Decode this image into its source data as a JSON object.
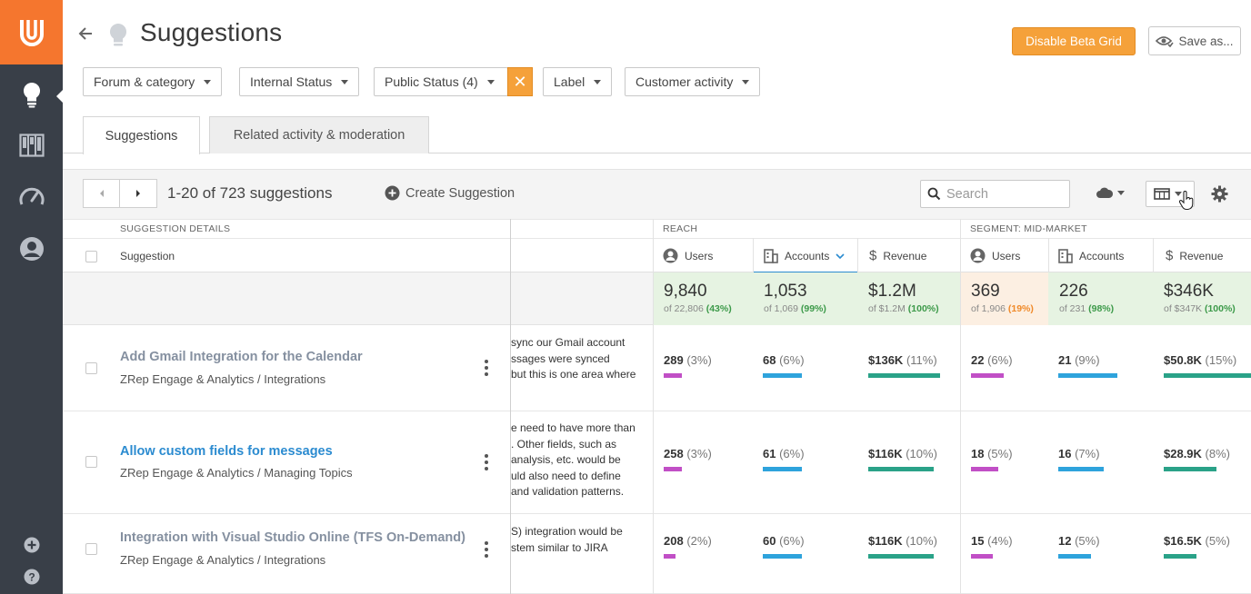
{
  "app": {
    "title": "Suggestions"
  },
  "header": {
    "beta_button": "Disable Beta Grid",
    "save_button": "Save as..."
  },
  "filters": [
    {
      "label": "Forum & category"
    },
    {
      "label": "Internal Status"
    },
    {
      "label": "Public Status (4)"
    },
    {
      "label": "Label"
    },
    {
      "label": "Customer activity"
    }
  ],
  "filter_clear": "✕",
  "tabs": [
    {
      "label": "Suggestions"
    },
    {
      "label": "Related activity & moderation"
    }
  ],
  "toolbar": {
    "range": "1-20 of 723 suggestions",
    "create": "Create Suggestion",
    "search_placeholder": "Search"
  },
  "grid": {
    "groups": {
      "details": "SUGGESTION DETAILS",
      "reach": "REACH",
      "segment": "SEGMENT: MID-MARKET"
    },
    "columns": {
      "suggestion": "Suggestion",
      "users": "Users",
      "accounts": "Accounts",
      "revenue": "Revenue"
    },
    "totals": [
      {
        "value": "9,840",
        "of": "of 22,806 ",
        "pct": "(43%)",
        "tone": "g"
      },
      {
        "value": "1,053",
        "of": "of 1,069 ",
        "pct": "(99%)",
        "tone": "g"
      },
      {
        "value": "$1.2M",
        "of": "of $1.2M ",
        "pct": "(100%)",
        "tone": "g"
      },
      {
        "value": "369",
        "of": "of 1,906 ",
        "pct": "(19%)",
        "tone": "o"
      },
      {
        "value": "226",
        "of": "of 231 ",
        "pct": "(98%)",
        "tone": "g"
      },
      {
        "value": "$346K",
        "of": "of $347K ",
        "pct": "(100%)",
        "tone": "g"
      }
    ],
    "rows": [
      {
        "title": "Add Gmail Integration for the Calendar",
        "category": "ZRep Engage & Analytics / Integrations",
        "desc": [
          "sync our Gmail account",
          "ssages were synced",
          "but this is one area where"
        ],
        "metrics": [
          {
            "v": "289",
            "p": "(3%)",
            "fill": 0.03
          },
          {
            "v": "68",
            "p": "(6%)",
            "fill": 0.06
          },
          {
            "v": "$136K",
            "p": "(11%)",
            "fill": 0.11
          },
          {
            "v": "22",
            "p": "(6%)",
            "fill": 0.06
          },
          {
            "v": "21",
            "p": "(9%)",
            "fill": 0.09
          },
          {
            "v": "$50.8K",
            "p": "(15%)",
            "fill": 0.15
          }
        ]
      },
      {
        "title": "Allow custom fields for messages",
        "category": "ZRep Engage & Analytics / Managing Topics",
        "desc": [
          "e need to have more than",
          ". Other fields, such as",
          "analysis, etc. would be",
          "uld also need to define",
          "and validation patterns."
        ],
        "metrics": [
          {
            "v": "258",
            "p": "(3%)",
            "fill": 0.03
          },
          {
            "v": "61",
            "p": "(6%)",
            "fill": 0.06
          },
          {
            "v": "$116K",
            "p": "(10%)",
            "fill": 0.1
          },
          {
            "v": "18",
            "p": "(5%)",
            "fill": 0.05
          },
          {
            "v": "16",
            "p": "(7%)",
            "fill": 0.07
          },
          {
            "v": "$28.9K",
            "p": "(8%)",
            "fill": 0.08
          }
        ]
      },
      {
        "title": "Integration with Visual Studio Online (TFS On-Demand)",
        "category": "ZRep Engage & Analytics / Integrations",
        "desc": [
          "S) integration would be",
          "stem similar to JIRA"
        ],
        "metrics": [
          {
            "v": "208",
            "p": "(2%)",
            "fill": 0.02
          },
          {
            "v": "60",
            "p": "(6%)",
            "fill": 0.06
          },
          {
            "v": "$116K",
            "p": "(10%)",
            "fill": 0.1
          },
          {
            "v": "15",
            "p": "(4%)",
            "fill": 0.04
          },
          {
            "v": "12",
            "p": "(5%)",
            "fill": 0.05
          },
          {
            "v": "$16.5K",
            "p": "(5%)",
            "fill": 0.05
          }
        ]
      }
    ]
  }
}
